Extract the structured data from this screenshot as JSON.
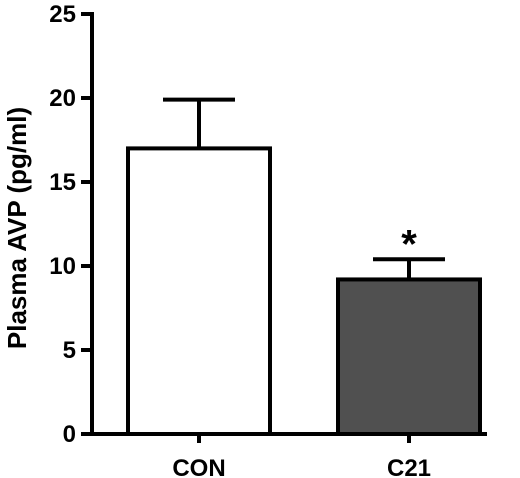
{
  "chart_data": {
    "type": "bar",
    "title": "",
    "xlabel": "",
    "ylabel": "Plasma AVP (pg/ml)",
    "ylim": [
      0,
      25
    ],
    "yticks": [
      0,
      5,
      10,
      15,
      20,
      25
    ],
    "categories": [
      "CON",
      "C21"
    ],
    "values": [
      17.0,
      9.2
    ],
    "error_upper": [
      2.9,
      1.2
    ],
    "bar_colors": [
      "#ffffff",
      "#505050"
    ],
    "annotations": [
      {
        "category": "C21",
        "text": "*"
      }
    ],
    "grid": false,
    "legend": "none"
  }
}
